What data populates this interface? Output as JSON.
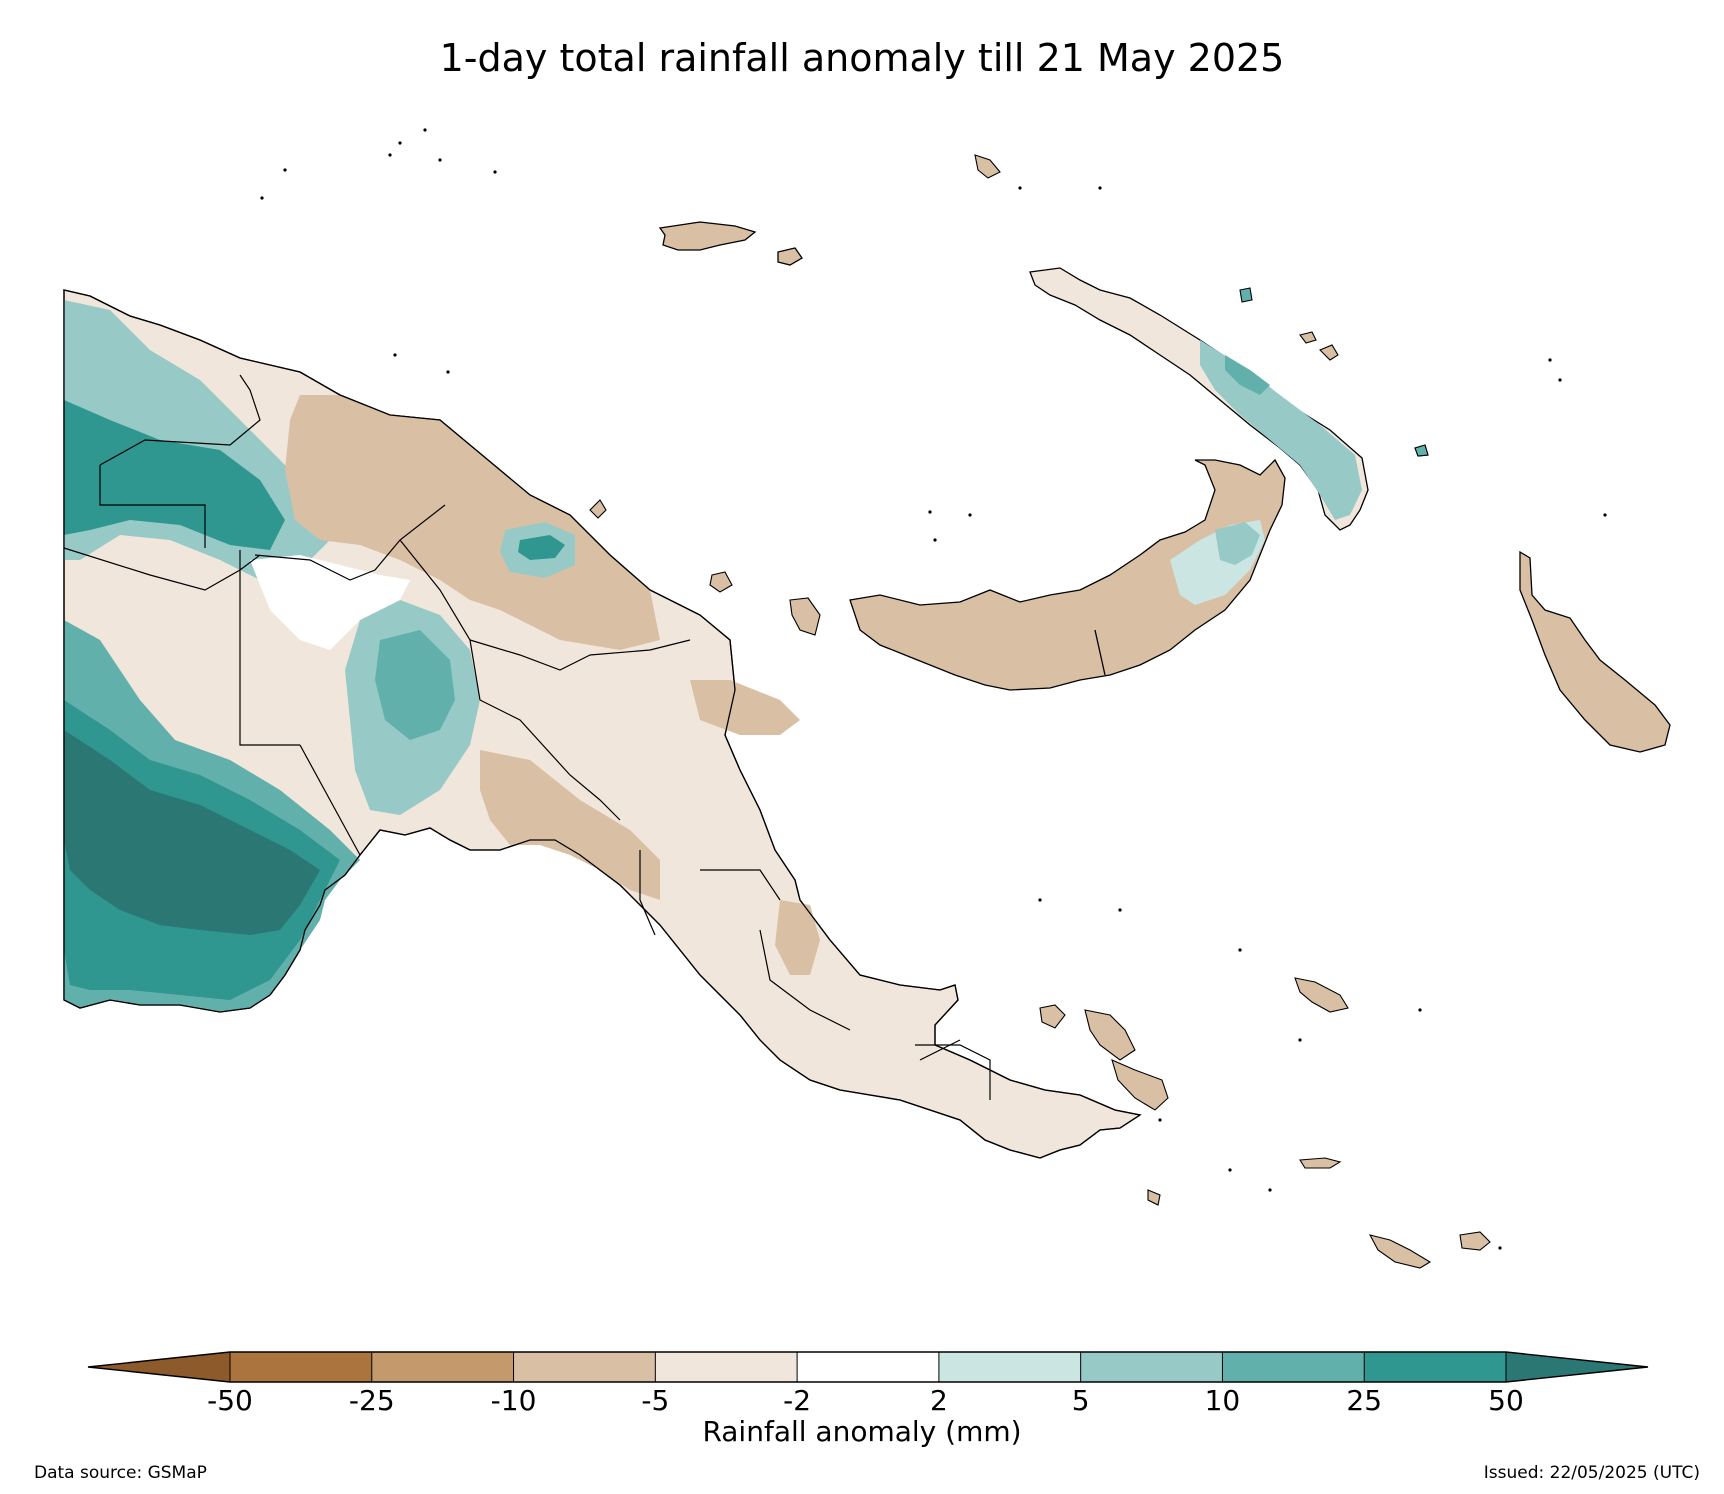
{
  "title": "1-day total rainfall anomaly till 21 May 2025",
  "colorbar": {
    "label": "Rainfall anomaly (mm)",
    "ticks": [
      "-50",
      "-25",
      "-10",
      "-5",
      "-2",
      "2",
      "5",
      "10",
      "25",
      "50"
    ],
    "bins": [
      {
        "range": "< -50",
        "color": "#8c5a2b"
      },
      {
        "range": "-50 to -25",
        "color": "#ab733d"
      },
      {
        "range": "-25 to -10",
        "color": "#c49a6c"
      },
      {
        "range": "-10 to -5",
        "color": "#d9bfa3"
      },
      {
        "range": "-5 to -2",
        "color": "#f1e6dc"
      },
      {
        "range": "-2 to 2",
        "color": "#ffffff"
      },
      {
        "range": "2 to 5",
        "color": "#cbe5e3"
      },
      {
        "range": "5 to 10",
        "color": "#97cac6"
      },
      {
        "range": "10 to 25",
        "color": "#62b0ab"
      },
      {
        "range": "25 to 50",
        "color": "#2f9690"
      },
      {
        "range": "> 50",
        "color": "#2a7774"
      }
    ]
  },
  "footer": {
    "source": "Data source: GSMaP",
    "issued": "Issued: 22/05/2025 (UTC)"
  }
}
